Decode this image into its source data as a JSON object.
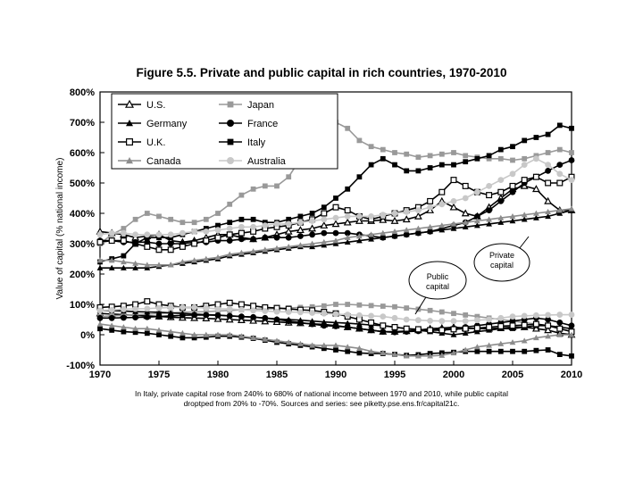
{
  "chart_data": {
    "type": "line",
    "title": "Figure 5.5. Private and public capital in rich countries, 1970-2010",
    "ylabel": "Value of capital (% national income)",
    "xlabel": "",
    "xlim": [
      1970,
      2010
    ],
    "ylim": [
      -100,
      800
    ],
    "x_ticks": [
      1970,
      1975,
      1980,
      1985,
      1990,
      1995,
      2000,
      2005,
      2010
    ],
    "x_tick_labels": [
      "1970",
      "1975",
      "1980",
      "1985",
      "1990",
      "1995",
      "2000",
      "2005",
      "2010"
    ],
    "y_ticks": [
      -100,
      0,
      100,
      200,
      300,
      400,
      500,
      600,
      700,
      800
    ],
    "y_tick_labels": [
      "-100%",
      "0%",
      "100%",
      "200%",
      "300%",
      "400%",
      "500%",
      "600%",
      "700%",
      "800%"
    ],
    "grid": false,
    "legend_position": "top-left",
    "annotations": [
      "Public capital",
      "Private capital"
    ],
    "caption_lines": [
      "In Italy, private capital rose from 240% to 680% of national income between 1970 and 2010, while public capital",
      "droptped from 20% to -70%. Sources and series:  see piketty.pse.ens.fr/capital21c."
    ],
    "x": [
      1970,
      1971,
      1972,
      1973,
      1974,
      1975,
      1976,
      1977,
      1978,
      1979,
      1980,
      1981,
      1982,
      1983,
      1984,
      1985,
      1986,
      1987,
      1988,
      1989,
      1990,
      1991,
      1992,
      1993,
      1994,
      1995,
      1996,
      1997,
      1998,
      1999,
      2000,
      2001,
      2002,
      2003,
      2004,
      2005,
      2006,
      2007,
      2008,
      2009,
      2010
    ],
    "series": [
      {
        "name": "U.S.",
        "color": "#000000",
        "marker": "triangle-open",
        "kind": "private",
        "values": [
          340,
          335,
          330,
          320,
          325,
          330,
          310,
          305,
          310,
          320,
          330,
          330,
          320,
          315,
          320,
          330,
          340,
          345,
          350,
          360,
          365,
          370,
          375,
          375,
          378,
          375,
          380,
          390,
          410,
          440,
          420,
          400,
          390,
          420,
          450,
          480,
          490,
          480,
          440,
          410,
          410
        ]
      },
      {
        "name": "Japan",
        "color": "#999999",
        "marker": "square-filled",
        "kind": "private",
        "values": [
          300,
          330,
          350,
          380,
          400,
          390,
          380,
          370,
          370,
          380,
          400,
          430,
          460,
          480,
          490,
          490,
          520,
          580,
          640,
          680,
          700,
          680,
          640,
          620,
          610,
          600,
          595,
          585,
          590,
          595,
          600,
          590,
          585,
          580,
          580,
          575,
          580,
          590,
          600,
          610,
          600
        ]
      },
      {
        "name": "Germany",
        "color": "#000000",
        "marker": "triangle-filled",
        "kind": "private",
        "values": [
          220,
          220,
          220,
          220,
          220,
          225,
          230,
          235,
          240,
          245,
          250,
          260,
          265,
          270,
          275,
          280,
          285,
          290,
          290,
          295,
          300,
          305,
          310,
          315,
          320,
          325,
          330,
          335,
          340,
          345,
          350,
          355,
          360,
          365,
          370,
          375,
          380,
          385,
          390,
          400,
          410
        ]
      },
      {
        "name": "France",
        "color": "#000000",
        "marker": "circle-filled",
        "kind": "private",
        "values": [
          310,
          310,
          305,
          305,
          305,
          300,
          300,
          300,
          305,
          305,
          310,
          310,
          315,
          315,
          320,
          320,
          320,
          325,
          330,
          335,
          335,
          335,
          330,
          325,
          320,
          325,
          330,
          335,
          340,
          350,
          360,
          370,
          390,
          410,
          440,
          470,
          500,
          520,
          540,
          560,
          575
        ]
      },
      {
        "name": "U.K.",
        "color": "#000000",
        "marker": "square-open",
        "kind": "private",
        "values": [
          305,
          310,
          310,
          300,
          290,
          280,
          280,
          290,
          300,
          310,
          320,
          330,
          335,
          340,
          350,
          355,
          360,
          370,
          380,
          400,
          420,
          410,
          390,
          380,
          390,
          400,
          410,
          420,
          440,
          470,
          510,
          490,
          470,
          460,
          470,
          490,
          510,
          520,
          500,
          500,
          520
        ]
      },
      {
        "name": "Italy",
        "color": "#000000",
        "marker": "square-filled",
        "kind": "private",
        "values": [
          240,
          250,
          260,
          300,
          320,
          320,
          320,
          330,
          340,
          350,
          360,
          370,
          380,
          380,
          370,
          370,
          380,
          390,
          400,
          420,
          450,
          480,
          520,
          560,
          580,
          560,
          540,
          540,
          550,
          560,
          560,
          570,
          580,
          590,
          610,
          620,
          640,
          650,
          660,
          690,
          680
        ]
      },
      {
        "name": "Canada",
        "color": "#8c8c8c",
        "marker": "triangle-filled",
        "kind": "private",
        "values": [
          245,
          245,
          240,
          235,
          230,
          230,
          230,
          240,
          245,
          250,
          255,
          265,
          270,
          275,
          280,
          285,
          290,
          295,
          300,
          305,
          310,
          320,
          325,
          330,
          335,
          340,
          345,
          350,
          355,
          360,
          365,
          370,
          375,
          380,
          385,
          390,
          395,
          400,
          405,
          410,
          415
        ]
      },
      {
        "name": "Australia",
        "color": "#c8c8c8",
        "marker": "circle-filled",
        "kind": "private",
        "values": [
          330,
          335,
          335,
          330,
          330,
          330,
          330,
          335,
          340,
          340,
          345,
          350,
          355,
          355,
          360,
          365,
          365,
          370,
          375,
          380,
          385,
          390,
          390,
          390,
          395,
          400,
          405,
          410,
          420,
          430,
          440,
          450,
          470,
          490,
          510,
          530,
          560,
          580,
          560,
          530,
          510
        ]
      },
      {
        "name": "U.S.",
        "color": "#000000",
        "marker": "triangle-open",
        "kind": "public",
        "values": [
          70,
          68,
          66,
          64,
          62,
          60,
          58,
          56,
          55,
          54,
          52,
          50,
          48,
          46,
          44,
          42,
          40,
          38,
          36,
          34,
          30,
          25,
          20,
          15,
          10,
          10,
          12,
          15,
          20,
          22,
          25,
          22,
          20,
          20,
          22,
          25,
          25,
          20,
          15,
          5,
          0
        ]
      },
      {
        "name": "Japan",
        "color": "#999999",
        "marker": "square-filled",
        "kind": "public",
        "values": [
          60,
          62,
          64,
          66,
          68,
          70,
          72,
          74,
          75,
          76,
          78,
          80,
          82,
          84,
          85,
          86,
          88,
          90,
          92,
          95,
          100,
          100,
          98,
          96,
          94,
          92,
          88,
          84,
          80,
          75,
          70,
          65,
          60,
          55,
          50,
          45,
          40,
          35,
          30,
          20,
          10
        ]
      },
      {
        "name": "Germany",
        "color": "#000000",
        "marker": "triangle-filled",
        "kind": "public",
        "values": [
          80,
          80,
          78,
          76,
          75,
          74,
          72,
          70,
          68,
          66,
          65,
          62,
          60,
          58,
          55,
          52,
          50,
          48,
          45,
          42,
          40,
          38,
          35,
          32,
          30,
          25,
          20,
          15,
          10,
          5,
          0,
          5,
          10,
          15,
          20,
          20,
          25,
          30,
          30,
          25,
          20
        ]
      },
      {
        "name": "France",
        "color": "#000000",
        "marker": "circle-filled",
        "kind": "public",
        "values": [
          55,
          55,
          56,
          57,
          58,
          60,
          62,
          64,
          65,
          65,
          64,
          62,
          60,
          58,
          55,
          50,
          45,
          40,
          35,
          30,
          28,
          25,
          20,
          15,
          10,
          8,
          10,
          12,
          15,
          18,
          20,
          25,
          30,
          35,
          40,
          45,
          50,
          55,
          50,
          40,
          30
        ]
      },
      {
        "name": "U.K.",
        "color": "#000000",
        "marker": "square-open",
        "kind": "public",
        "values": [
          90,
          92,
          95,
          100,
          110,
          100,
          95,
          90,
          90,
          95,
          100,
          105,
          100,
          95,
          90,
          88,
          85,
          82,
          80,
          75,
          70,
          60,
          50,
          40,
          30,
          25,
          20,
          18,
          15,
          15,
          18,
          20,
          22,
          25,
          28,
          30,
          32,
          35,
          30,
          20,
          10
        ]
      },
      {
        "name": "Italy",
        "color": "#000000",
        "marker": "square-filled",
        "kind": "public",
        "values": [
          20,
          15,
          10,
          8,
          5,
          0,
          -5,
          -10,
          -10,
          -8,
          -5,
          -5,
          -8,
          -12,
          -18,
          -25,
          -30,
          -35,
          -40,
          -45,
          -50,
          -55,
          -60,
          -62,
          -62,
          -65,
          -68,
          -66,
          -62,
          -60,
          -58,
          -55,
          -55,
          -55,
          -55,
          -55,
          -55,
          -52,
          -50,
          -65,
          -70
        ]
      },
      {
        "name": "Canada",
        "color": "#8c8c8c",
        "marker": "triangle-filled",
        "kind": "public",
        "values": [
          35,
          30,
          25,
          20,
          20,
          15,
          10,
          5,
          0,
          0,
          0,
          0,
          -5,
          -10,
          -15,
          -20,
          -25,
          -30,
          -35,
          -35,
          -35,
          -40,
          -45,
          -55,
          -60,
          -65,
          -70,
          -70,
          -70,
          -68,
          -60,
          -50,
          -40,
          -35,
          -30,
          -25,
          -20,
          -10,
          -5,
          0,
          0
        ]
      },
      {
        "name": "Australia",
        "color": "#c8c8c8",
        "marker": "circle-filled",
        "kind": "public",
        "values": [
          80,
          82,
          84,
          85,
          86,
          88,
          90,
          90,
          90,
          88,
          85,
          85,
          82,
          80,
          78,
          76,
          75,
          74,
          72,
          70,
          68,
          66,
          64,
          62,
          60,
          55,
          50,
          48,
          46,
          45,
          45,
          45,
          48,
          50,
          55,
          60,
          62,
          64,
          65,
          66,
          66
        ]
      }
    ]
  }
}
